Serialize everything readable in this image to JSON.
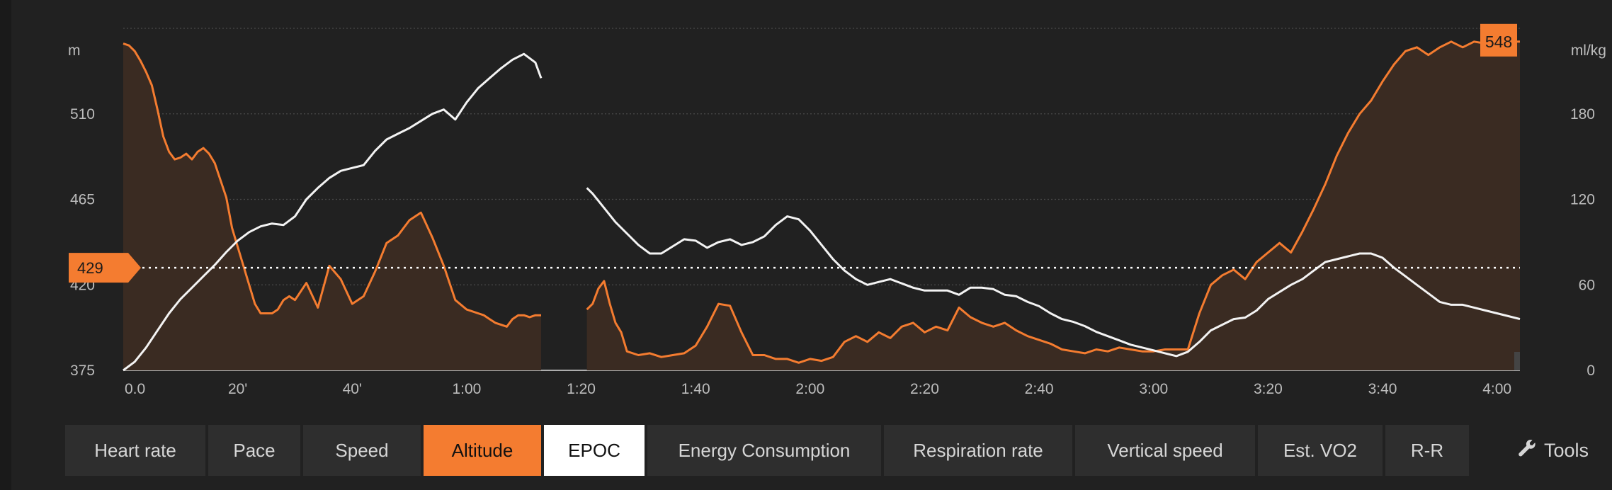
{
  "chart_data": {
    "type": "line",
    "x_unit": "elapsed time",
    "x_ticks": [
      "0.0",
      "20'",
      "40'",
      "1:00",
      "1:20",
      "1:40",
      "2:00",
      "2:20",
      "2:40",
      "3:00",
      "3:20",
      "3:40",
      "4:00"
    ],
    "x_tick_minutes": [
      0,
      20,
      40,
      60,
      80,
      100,
      120,
      140,
      160,
      180,
      200,
      220,
      240
    ],
    "xlim_minutes": [
      0,
      244
    ],
    "y_left": {
      "unit": "m",
      "ticks": [
        "375",
        "420",
        "465",
        "510"
      ],
      "tick_values": [
        375,
        420,
        465,
        510
      ],
      "ylim": [
        375,
        555
      ]
    },
    "y_right": {
      "unit": "ml/kg",
      "ticks": [
        "0",
        "60",
        "120",
        "180"
      ],
      "tick_values": [
        0,
        60,
        120,
        180
      ],
      "ylim": [
        0,
        240
      ]
    },
    "grid": true,
    "series": [
      {
        "name": "Altitude",
        "axis": "left",
        "color": "#f47c30",
        "fill": "#3a2b22",
        "segments": [
          {
            "minutes": [
              0,
              1,
              2,
              3,
              4,
              5,
              6,
              7,
              8,
              9,
              10,
              11,
              12,
              13,
              14,
              15,
              16,
              17,
              18,
              19,
              20,
              21,
              22,
              23,
              24,
              25,
              26,
              27,
              28,
              29,
              30,
              32,
              34,
              36,
              38,
              40,
              42,
              44,
              46,
              48,
              50,
              52,
              54,
              56,
              58,
              60,
              62,
              63,
              64,
              65,
              66,
              67,
              68,
              69,
              70,
              71,
              72,
              73
            ],
            "values": [
              547,
              546,
              543,
              538,
              532,
              525,
              512,
              498,
              490,
              486,
              487,
              489,
              486,
              490,
              492,
              489,
              484,
              475,
              466,
              450,
              440,
              430,
              420,
              410,
              405,
              405,
              405,
              407,
              412,
              414,
              412,
              421,
              408,
              430,
              423,
              410,
              414,
              427,
              442,
              446,
              454,
              458,
              445,
              430,
              412,
              407,
              405,
              404,
              402,
              400,
              399,
              398,
              402,
              404,
              404,
              403,
              404,
              404
            ]
          },
          {
            "minutes": [
              81,
              82,
              83,
              84,
              85,
              86,
              87,
              88,
              90,
              92,
              94,
              96,
              98,
              100,
              102,
              104,
              106,
              108,
              110,
              112,
              114,
              116,
              118,
              120,
              122,
              124,
              126,
              128,
              130,
              132,
              134,
              136,
              138,
              140,
              142,
              144,
              146,
              148,
              150,
              152,
              154,
              156,
              158,
              160,
              162,
              164,
              166,
              168,
              170,
              172,
              174,
              176,
              178,
              180,
              182,
              184,
              186,
              188,
              190,
              192,
              194,
              196,
              198,
              200,
              202,
              204,
              206,
              208,
              210,
              212,
              214,
              216,
              218,
              220,
              222,
              224,
              226,
              228,
              230,
              232,
              234,
              236,
              238,
              240,
              242,
              244
            ],
            "values": [
              407,
              410,
              418,
              422,
              410,
              400,
              395,
              385,
              383,
              384,
              382,
              383,
              384,
              388,
              398,
              410,
              409,
              395,
              383,
              383,
              381,
              381,
              379,
              381,
              380,
              382,
              390,
              393,
              390,
              395,
              392,
              398,
              400,
              395,
              398,
              396,
              408,
              403,
              400,
              398,
              400,
              396,
              393,
              391,
              389,
              386,
              385,
              384,
              386,
              385,
              387,
              386,
              385,
              385,
              386,
              386,
              386,
              405,
              420,
              425,
              428,
              423,
              432,
              437,
              442,
              437,
              448,
              460,
              473,
              488,
              500,
              510,
              517,
              527,
              536,
              543,
              545,
              541,
              545,
              548,
              545,
              548,
              547,
              548,
              548,
              548
            ]
          }
        ]
      },
      {
        "name": "EPOC",
        "axis": "right",
        "color": "#f3f3f3",
        "segments": [
          {
            "minutes": [
              0,
              2,
              4,
              6,
              8,
              10,
              12,
              14,
              16,
              18,
              20,
              22,
              24,
              26,
              28,
              30,
              32,
              34,
              36,
              38,
              40,
              42,
              44,
              46,
              48,
              50,
              52,
              54,
              56,
              58,
              60,
              62,
              64,
              66,
              68,
              70,
              72,
              73
            ],
            "values": [
              0,
              6,
              16,
              28,
              40,
              50,
              58,
              66,
              74,
              83,
              91,
              97,
              101,
              103,
              102,
              108,
              120,
              128,
              135,
              140,
              142,
              144,
              154,
              162,
              166,
              170,
              175,
              180,
              183,
              176,
              188,
              198,
              205,
              212,
              218,
              222,
              216,
              205
            ]
          },
          {
            "minutes": [
              81,
              82,
              84,
              86,
              88,
              90,
              92,
              94,
              96,
              98,
              100,
              102,
              104,
              106,
              108,
              110,
              112,
              114,
              116,
              118,
              120,
              122,
              124,
              126,
              128,
              130,
              132,
              134,
              136,
              138,
              140,
              142,
              144,
              146,
              148,
              150,
              152,
              154,
              156,
              158,
              160,
              162,
              164,
              166,
              168,
              170,
              172,
              174,
              176,
              178,
              180,
              182,
              184,
              186,
              188,
              190,
              192,
              194,
              196,
              198,
              200,
              202,
              204,
              206,
              208,
              210,
              212,
              214,
              216,
              218,
              220,
              222,
              224,
              226,
              228,
              230,
              232,
              234,
              236,
              238,
              240,
              242,
              244
            ],
            "values": [
              128,
              124,
              114,
              104,
              96,
              88,
              82,
              82,
              87,
              92,
              91,
              86,
              90,
              92,
              88,
              90,
              94,
              102,
              108,
              106,
              98,
              88,
              78,
              70,
              64,
              60,
              62,
              64,
              61,
              58,
              56,
              56,
              56,
              53,
              58,
              58,
              57,
              53,
              52,
              48,
              45,
              40,
              36,
              34,
              31,
              27,
              24,
              21,
              18,
              16,
              14,
              12,
              10,
              13,
              20,
              28,
              32,
              36,
              37,
              42,
              50,
              55,
              60,
              64,
              70,
              76,
              78,
              80,
              82,
              82,
              79,
              72,
              66,
              60,
              54,
              48,
              46,
              46,
              44,
              42,
              40,
              38,
              36
            ]
          }
        ]
      }
    ],
    "markers": [
      {
        "axis": "left",
        "label": "429",
        "value": 429,
        "style": "dotted"
      },
      {
        "axis": "right",
        "label": "548",
        "value": 548
      }
    ]
  },
  "tabs": [
    {
      "label": "Heart rate",
      "state": "normal"
    },
    {
      "label": "Pace",
      "state": "normal"
    },
    {
      "label": "Speed",
      "state": "normal"
    },
    {
      "label": "Altitude",
      "state": "active-orange"
    },
    {
      "label": "EPOC",
      "state": "active-white"
    },
    {
      "label": "Energy Consumption",
      "state": "normal"
    },
    {
      "label": "Respiration rate",
      "state": "normal"
    },
    {
      "label": "Vertical speed",
      "state": "normal"
    },
    {
      "label": "Est. VO2",
      "state": "normal"
    },
    {
      "label": "R-R",
      "state": "normal"
    }
  ],
  "tools": {
    "label": "Tools",
    "icon": "wrench-icon"
  },
  "colors": {
    "accent": "#f47c30",
    "secondary": "#f3f3f3",
    "background": "#212121"
  }
}
